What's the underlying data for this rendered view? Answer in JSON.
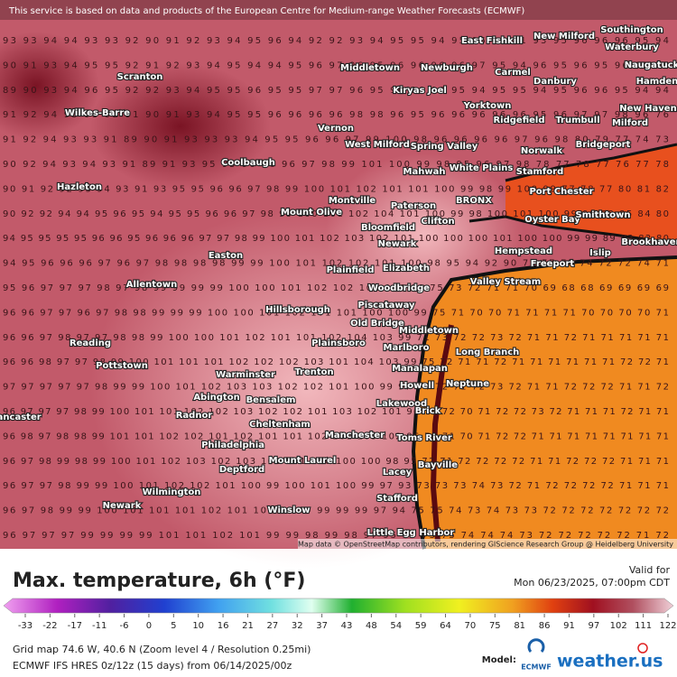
{
  "banner": "This service is based on data and products of the European Centre for Medium-range Weather Forecasts (ECMWF)",
  "attribution": "Map data © OpenStreetMap contributors, rendering GIScience Research Group @ Heidelberg University",
  "grid_rows": [
    "93 93 94 94 93 93 92 90 91 92 93 94 95 96 94 92 92 93 94 95 95 94 95 96 96 91 93 95 96 96 96 95 94",
    "90 91 93 94 95 95 92 91 92 93 94 95 94 94 95 96 97 96 95 96 96 96 96 97 95 94 96 95 96 95 96 95 94",
    "89 90 93 94 96 95 92 92 93 94 95 95 96 95 95 97 97 96 95 96 96 96 95 94 95 95 94 95 96 96 95 94 94",
    "91 92 94 95 93 92 91 90 91 93 94 95 95 96 96 96 96 98 98 96 95 96 96 96 96 96 95 96 97 97 98 96 76",
    "91 92 94 93 93 91 89 90 91 93 93 93 94 95 95 96 96 97 99 100 98 96 96 96 96 97 96 98 80 79 77 74 73",
    "90 92 94 93 94 93 91 89 91 93 95 95 96 96 96 97 98 99 101 100 99 98 95 96 97 98 78 77 78 77 76 77 78",
    "90 91 92 92 93 94 93 91 93 95 95 96 96 97 98 99 100 101 102 101 101 100 99 98 99 100 99 77 78 77 80 81 82",
    "90 92 92 94 94 95 96 95 94 95 95 96 96 97 98 99 100 101 102 104 101 100 99 98 100 101 100 99 98 88 85 84 80",
    "94 95 95 95 95 96 96 95 96 96 96 97 97 98 99 100 101 102 103 102 101 100 100 100 101 100 100 99 99 89 83 82 80",
    "94 95 96 96 96 97 96 97 98 98 98 98 99 99 100 101 102 102 101 100 98 95 94 92 90 79 77 75 74 72 72 74 71",
    "95 96 97 97 97 98 97 98 99 99 99 99 100 100 101 102 102 101 100 99 75 73 72 71 71 70 69 68 68 69 69 69 69",
    "96 96 97 97 96 97 98 98 99 99 99 100 100 101 102 101 101 100 100 99 75 71 70 70 71 71 71 71 70 70 70 70 71",
    "96 96 97 98 97 97 98 98 99 100 100 101 102 101 101 102 104 103 99 71 73 72 72 73 72 71 71 72 71 71 71 71 71",
    "96 96 98 97 97 98 99 100 101 101 101 102 102 102 103 101 104 103 99 75 72 71 71 72 71 71 71 71 71 71 72 72 71",
    "97 97 97 97 97 98 99 99 100 101 102 103 103 102 102 101 100 99 97 74 72 71 72 73 72 71 71 72 72 72 71 71 72",
    "96 97 97 97 98 99 100 101 101 102 102 103 102 102 101 103 102 101 96 74 72 70 71 72 72 73 72 71 71 71 72 71 71",
    "96 98 97 98 98 99 101 101 102 102 101 102 101 101 102 101 103 102 96 73 71 70 71 72 72 71 71 71 71 71 71 71 71",
    "96 97 98 99 98 99 100 101 102 103 102 103 101 101 100 100 100 98 95 72 71 72 72 72 72 71 71 72 72 72 71 71 71",
    "96 97 97 98 99 99 100 101 102 102 101 100 99 100 101 100 99 97 93 73 73 73 74 73 72 71 72 72 72 72 71 71 71",
    "96 97 98 99 99 100 101 101 101 102 101 100 99 99 99 99 99 97 94 75 75 74 73 74 73 73 72 72 72 72 72 72 72",
    "96 97 97 97 99 99 99 99 101 101 102 101 99 99 98 99 98 97 95 75 75 75 74 74 74 73 72 72 72 72 72 71 72"
  ],
  "places": [
    "Scranton",
    "Wilkes-Barre",
    "Hazleton",
    "Allentown",
    "Easton",
    "Reading",
    "Pottstown",
    "Coolbaugh",
    "Middletown",
    "Newburgh",
    "East Fishkill",
    "New Milford",
    "Southington",
    "Waterbury",
    "Naugatuck",
    "Danbury",
    "Carmel",
    "Kiryas Joel",
    "Hamden",
    "Yorktown",
    "Ridgefield",
    "Trumbull",
    "New Haven",
    "Milford",
    "Vernon",
    "West Milford",
    "Spring Valley",
    "Norwalk",
    "Bridgeport",
    "White Plains",
    "Mahwah",
    "Stamford",
    "Port Chester",
    "Montville",
    "BRONX",
    "Paterson",
    "Mount Olive",
    "Clifton",
    "Oyster Bay",
    "Smithtown",
    "Bloomfield",
    "Newark",
    "Hempstead",
    "Islip",
    "Brookhaven",
    "Elizabeth",
    "Plainfield",
    "Freeport",
    "Valley Stream",
    "Woodbridge",
    "Piscataway",
    "Hillsborough",
    "Old Bridge",
    "Middletown",
    "Plainsboro",
    "Marlboro",
    "Long Branch",
    "Manalapan",
    "Warminster",
    "Trenton",
    "Neptune",
    "Howell",
    "Abington",
    "Bensalem",
    "Lakewood",
    "Radnor",
    "Brick",
    "Cheltenham",
    "Manchester",
    "Toms River",
    "Philadelphia",
    "Mount Laurel",
    "Bayville",
    "Deptford",
    "Lacey",
    "Wilmington",
    "Stafford",
    "Newark",
    "Winslow",
    "Little Egg Harbor",
    "Lancaster"
  ],
  "footer": {
    "title": "Max. temperature, 6h (°F)",
    "valid_label": "Valid for",
    "valid_time": "Mon 06/23/2025, 07:00pm CDT",
    "scale_labels": [
      -33,
      -22,
      -17,
      -11,
      -6,
      0,
      5,
      10,
      16,
      21,
      27,
      32,
      37,
      43,
      48,
      54,
      59,
      64,
      70,
      75,
      81,
      86,
      91,
      97,
      102,
      111,
      122
    ],
    "grid_info": "Grid map 74.6 W, 40.6 N (Zoom level 4 / Resolution 0.25mi)",
    "model_info": "ECMWF IFS HRES 0z/12z (15 days) from 06/14/2025/00z",
    "model_label": "Model:",
    "model_name": "ECMWF",
    "brand": "weather.us"
  }
}
